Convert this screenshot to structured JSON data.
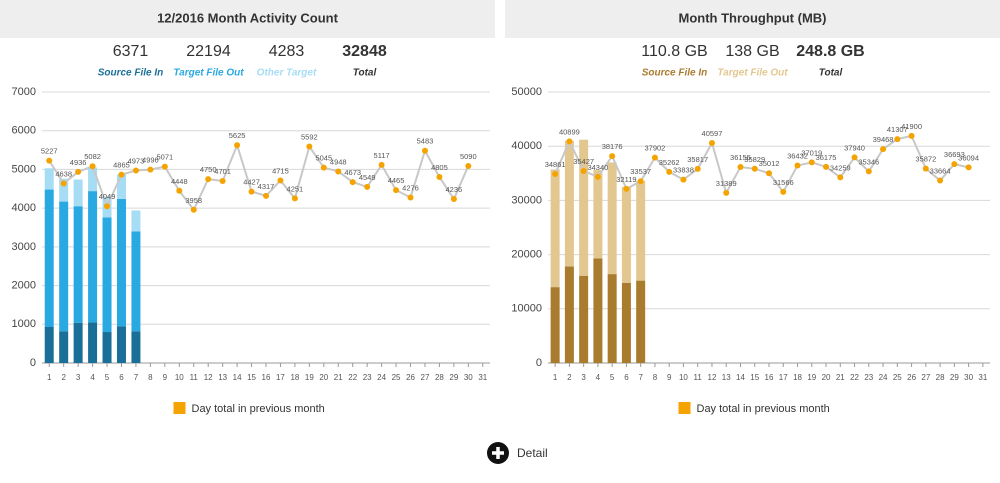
{
  "chart_data": [
    {
      "type": "bar",
      "title": "12/2016 Month Activity Count",
      "categories": [
        "1",
        "2",
        "3",
        "4",
        "5",
        "6",
        "7",
        "8",
        "9",
        "10",
        "11",
        "12",
        "13",
        "14",
        "15",
        "16",
        "17",
        "18",
        "19",
        "20",
        "21",
        "22",
        "23",
        "24",
        "25",
        "26",
        "27",
        "28",
        "29",
        "30",
        "31"
      ],
      "series": [
        {
          "name": "Source File In",
          "color": "#1a6f98",
          "total": 6371,
          "values": [
            930,
            820,
            1040,
            1050,
            800,
            950,
            820,
            null,
            null,
            null,
            null,
            null,
            null,
            null,
            null,
            null,
            null,
            null,
            null,
            null,
            null,
            null,
            null,
            null,
            null,
            null,
            null,
            null,
            null,
            null,
            null
          ]
        },
        {
          "name": "Target File Out",
          "color": "#29a9e1",
          "total": 22194,
          "values": [
            3550,
            3350,
            3010,
            3390,
            2960,
            3290,
            2580,
            null,
            null,
            null,
            null,
            null,
            null,
            null,
            null,
            null,
            null,
            null,
            null,
            null,
            null,
            null,
            null,
            null,
            null,
            null,
            null,
            null,
            null,
            null,
            null
          ]
        },
        {
          "name": "Other Target",
          "color": "#a6dcf4",
          "total": 4283,
          "values": [
            550,
            590,
            690,
            610,
            540,
            630,
            540,
            null,
            null,
            null,
            null,
            null,
            null,
            null,
            null,
            null,
            null,
            null,
            null,
            null,
            null,
            null,
            null,
            null,
            null,
            null,
            null,
            null,
            null,
            null,
            null
          ]
        },
        {
          "name": "Day total in previous month",
          "type": "line",
          "color": "#f5a300",
          "line_color": "#c8c8c8",
          "values": [
            5227,
            4638,
            4936,
            5082,
            4049,
            4865,
            4973,
            4996,
            5071,
            4448,
            3958,
            4750,
            4701,
            5625,
            4427,
            4317,
            4715,
            4251,
            5592,
            5045,
            4948,
            4673,
            4549,
            5117,
            4465,
            4276,
            5483,
            4805,
            4236,
            5090,
            null
          ]
        }
      ],
      "grand_total": {
        "label": "Total",
        "value": 32848
      },
      "ylim": [
        0,
        7000
      ],
      "yticks": [
        0,
        1000,
        2000,
        3000,
        4000,
        5000,
        6000,
        7000
      ],
      "grid": true,
      "stacked": true,
      "legend": "bottom"
    },
    {
      "type": "bar",
      "title": "Month Throughput (MB)",
      "categories": [
        "1",
        "2",
        "3",
        "4",
        "5",
        "6",
        "7",
        "8",
        "9",
        "10",
        "11",
        "12",
        "13",
        "14",
        "15",
        "16",
        "17",
        "18",
        "19",
        "20",
        "21",
        "22",
        "23",
        "24",
        "25",
        "26",
        "27",
        "28",
        "29",
        "30",
        "31"
      ],
      "series": [
        {
          "name": "Source File In",
          "color": "#a97b2d",
          "total": "110.8 GB",
          "values": [
            14000,
            17800,
            16100,
            19300,
            16400,
            14800,
            15200,
            null,
            null,
            null,
            null,
            null,
            null,
            null,
            null,
            null,
            null,
            null,
            null,
            null,
            null,
            null,
            null,
            null,
            null,
            null,
            null,
            null,
            null,
            null,
            null
          ]
        },
        {
          "name": "Target File Out",
          "color": "#e3c790",
          "total": "138 GB",
          "values": [
            21700,
            23200,
            25100,
            16300,
            20600,
            17700,
            18400,
            null,
            null,
            null,
            null,
            null,
            null,
            null,
            null,
            null,
            null,
            null,
            null,
            null,
            null,
            null,
            null,
            null,
            null,
            null,
            null,
            null,
            null,
            null,
            null
          ]
        },
        {
          "name": "Day total in previous month",
          "type": "line",
          "color": "#f5a300",
          "line_color": "#c8c8c8",
          "values": [
            34861,
            40899,
            35427,
            34340,
            38176,
            32119,
            33537,
            37902,
            35262,
            33838,
            35817,
            40597,
            31389,
            36155,
            35829,
            35012,
            31566,
            36432,
            37019,
            36175,
            34259,
            37940,
            35346,
            39468,
            41307,
            41900,
            35872,
            33664,
            36693,
            36094,
            null
          ]
        }
      ],
      "grand_total": {
        "label": "Total",
        "value": "248.8 GB"
      },
      "ylim": [
        0,
        50000
      ],
      "yticks": [
        0,
        10000,
        20000,
        30000,
        40000,
        50000
      ],
      "grid": true,
      "stacked": true,
      "legend": "bottom"
    }
  ],
  "detail_button": "Detail"
}
